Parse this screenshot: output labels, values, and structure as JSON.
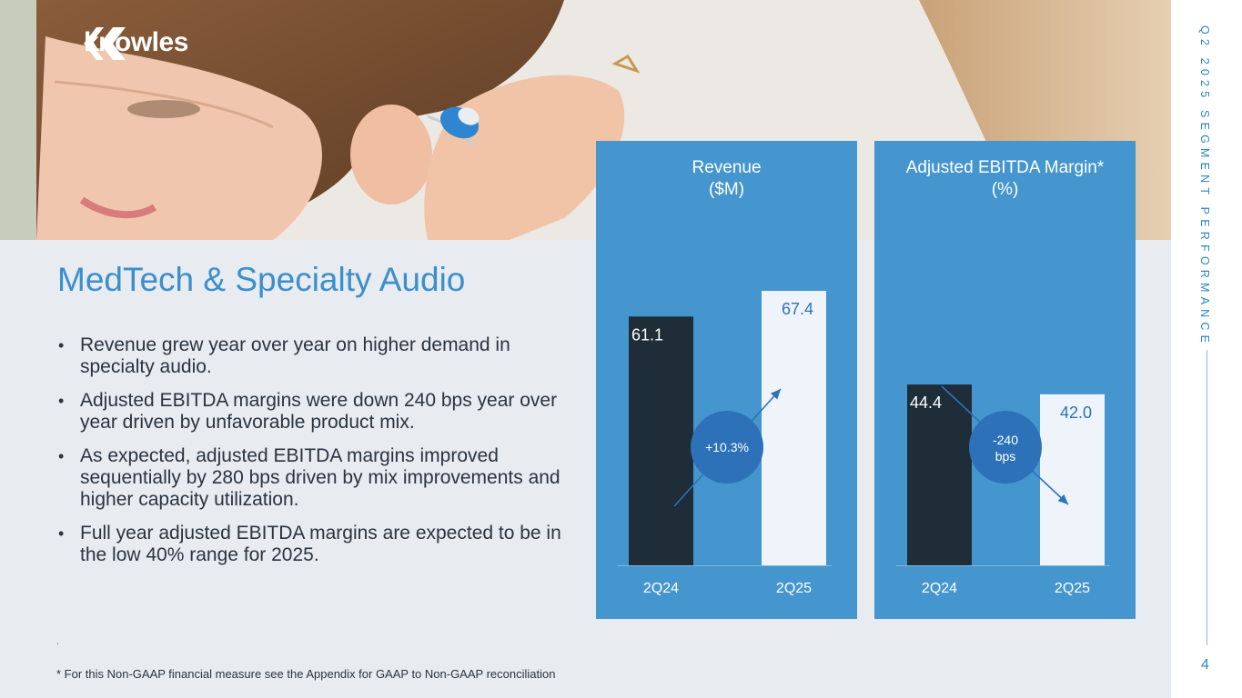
{
  "brand": {
    "logo_text": "knowles"
  },
  "sidebar": {
    "section_title": "Q2 2025 SEGMENT PERFORMANCE",
    "page_number": "4"
  },
  "slide": {
    "title": "MedTech & Specialty Audio",
    "bullets": [
      "Revenue grew year over year on higher demand in specialty audio.",
      "Adjusted EBITDA margins were down 240 bps year over year driven by unfavorable product mix.",
      "As expected, adjusted EBITDA margins improved sequentially by 280 bps driven by mix improvements and higher capacity utilization.",
      "Full year adjusted EBITDA margins are expected to be in the low 40% range for 2025."
    ],
    "dot_mark": ".",
    "footnote": "* For this Non-GAAP financial measure see the Appendix for GAAP to Non-GAAP reconciliation"
  },
  "colors": {
    "dark_bar": "#1e2d38",
    "light_bar": "#eef4fa",
    "panel_bg": "#4596ce",
    "badge": "#2d72b9",
    "accent": "#2c86c6"
  },
  "chart_data": [
    {
      "type": "bar",
      "title_line1": "Revenue",
      "title_line2": "($M)",
      "categories": [
        "2Q24",
        "2Q25"
      ],
      "values": [
        61.1,
        67.4
      ],
      "value_labels": [
        "61.1",
        "67.4"
      ],
      "change_label": "+10.3%",
      "change_direction": "up"
    },
    {
      "type": "bar",
      "title_line1": "Adjusted EBITDA Margin*",
      "title_line2": "(%)",
      "categories": [
        "2Q24",
        "2Q25"
      ],
      "values": [
        44.4,
        42.0
      ],
      "value_labels": [
        "44.4",
        "42.0"
      ],
      "change_label_lines": [
        "-240",
        "bps"
      ],
      "change_direction": "down"
    }
  ]
}
